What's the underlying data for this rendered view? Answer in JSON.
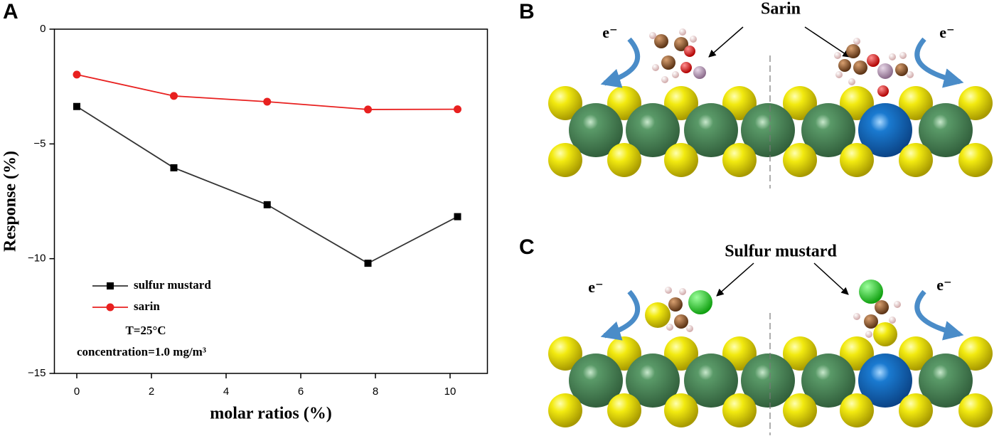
{
  "chart_data": {
    "type": "line",
    "panel_label": "A",
    "xlabel": "molar ratios (%)",
    "ylabel": "Response (%)",
    "x": [
      0,
      2.6,
      5.1,
      7.8,
      10.2
    ],
    "series": [
      {
        "name": "sulfur mustard",
        "color": "#333333",
        "marker": "square",
        "values": [
          -3.37,
          -6.04,
          -7.65,
          -10.2,
          -8.17
        ]
      },
      {
        "name": "sarin",
        "color": "#e8201f",
        "marker": "circle",
        "values": [
          -1.98,
          -2.91,
          -3.16,
          -3.5,
          -3.49
        ]
      }
    ],
    "xlim": [
      -0.6,
      11
    ],
    "ylim": [
      -15,
      0
    ],
    "xticks": [
      0,
      2,
      4,
      6,
      8,
      10
    ],
    "yticks": [
      0,
      {
        "value": -5,
        "label": "−5"
      },
      {
        "value": -10,
        "label": "−10"
      },
      {
        "value": -15,
        "label": "−15"
      }
    ],
    "legend": "lower left",
    "annotations": [
      "T=25°C",
      "concentration=1.0 mg/m³"
    ]
  },
  "diagrams": [
    {
      "label": "B",
      "title": "Sarin",
      "electron": "e⁻"
    },
    {
      "label": "C",
      "title": "Sulfur mustard",
      "electron": "e⁻"
    }
  ]
}
